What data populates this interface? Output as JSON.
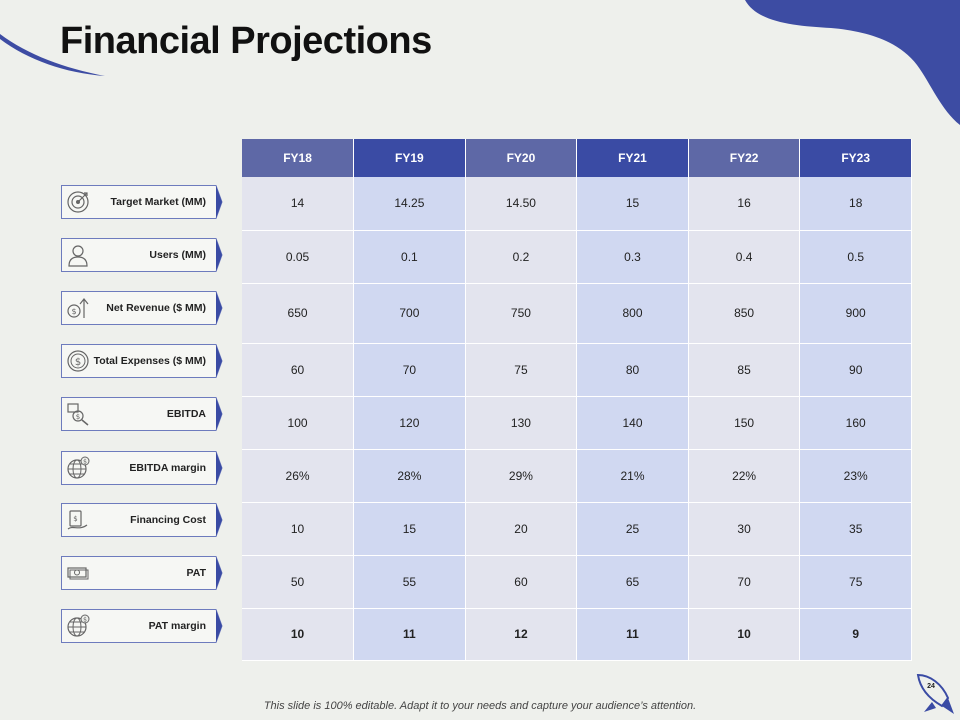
{
  "title": "Financial Projections",
  "years": [
    "FY18",
    "FY19",
    "FY20",
    "FY21",
    "FY22",
    "FY23"
  ],
  "rows": [
    {
      "label": "Target Market (MM)",
      "icon": "target-icon",
      "values": [
        "14",
        "14.25",
        "14.50",
        "15",
        "16",
        "18"
      ]
    },
    {
      "label": "Users (MM)",
      "icon": "user-icon",
      "values": [
        "0.05",
        "0.1",
        "0.2",
        "0.3",
        "0.4",
        "0.5"
      ]
    },
    {
      "label": "Net Revenue ($ MM)",
      "icon": "dollar-arrow-up-icon",
      "values": [
        "650",
        "700",
        "750",
        "800",
        "850",
        "900"
      ]
    },
    {
      "label": "Total Expenses ($ MM)",
      "icon": "coin-icon",
      "values": [
        "60",
        "70",
        "75",
        "80",
        "85",
        "90"
      ]
    },
    {
      "label": "EBITDA",
      "icon": "document-magnifier-icon",
      "values": [
        "100",
        "120",
        "130",
        "140",
        "150",
        "160"
      ]
    },
    {
      "label": "EBITDA margin",
      "icon": "globe-dollar-icon",
      "values": [
        "26%",
        "28%",
        "29%",
        "21%",
        "22%",
        "23%"
      ]
    },
    {
      "label": "Financing Cost",
      "icon": "hand-device-icon",
      "values": [
        "10",
        "15",
        "20",
        "25",
        "30",
        "35"
      ]
    },
    {
      "label": "PAT",
      "icon": "banknotes-icon",
      "values": [
        "50",
        "55",
        "60",
        "65",
        "70",
        "75"
      ]
    },
    {
      "label": "PAT margin",
      "icon": "globe-dollar-icon",
      "values": [
        "10",
        "11",
        "12",
        "11",
        "10",
        "9"
      ]
    }
  ],
  "footer": "This slide is 100% editable. Adapt it to your needs and capture your audience’s attention.",
  "page_number": "24",
  "colors": {
    "accent": "#3a4ba4",
    "header_alt": "#5e68a6",
    "cell_light": "#e3e4ee",
    "cell_blue": "#d0d8f1",
    "background": "#eef0ec"
  }
}
